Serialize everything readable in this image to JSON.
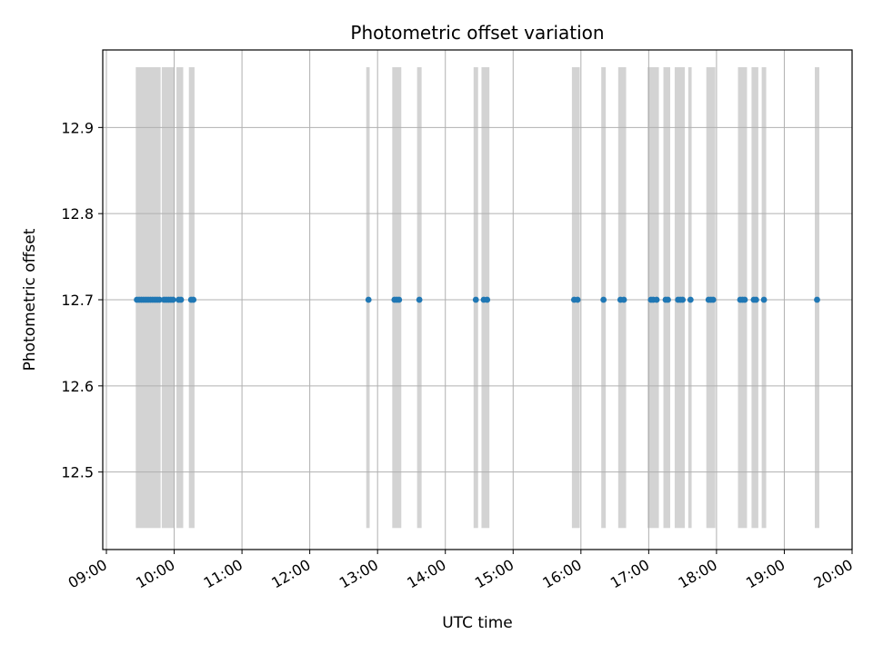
{
  "chart_data": {
    "type": "scatter",
    "title": "Photometric offset variation",
    "xlabel": "UTC time",
    "ylabel": "Photometric offset",
    "xlim": [
      "09:00",
      "20:00"
    ],
    "ylim": [
      12.41,
      12.99
    ],
    "x_ticks": [
      "09:00",
      "10:00",
      "11:00",
      "12:00",
      "13:00",
      "14:00",
      "15:00",
      "16:00",
      "17:00",
      "18:00",
      "19:00",
      "20:00"
    ],
    "y_ticks": [
      12.5,
      12.6,
      12.7,
      12.8,
      12.9
    ],
    "y_tick_labels": [
      "12.5",
      "12.6",
      "12.7",
      "12.8",
      "12.9"
    ],
    "grid": true,
    "point_color": "#1f77b4",
    "span_color": "#d3d3d3",
    "band_range": [
      12.435,
      12.97
    ],
    "exposure_spans": [
      [
        "09:26",
        "09:48"
      ],
      [
        "09:49",
        "10:00"
      ],
      [
        "10:02",
        "10:08"
      ],
      [
        "10:13",
        "10:18"
      ],
      [
        "12:50",
        "12:53"
      ],
      [
        "13:13",
        "13:21"
      ],
      [
        "13:35",
        "13:39"
      ],
      [
        "14:25",
        "14:29"
      ],
      [
        "14:32",
        "14:39"
      ],
      [
        "15:52",
        "15:59"
      ],
      [
        "16:18",
        "16:22"
      ],
      [
        "16:33",
        "16:40"
      ],
      [
        "16:59",
        "17:09"
      ],
      [
        "17:13",
        "17:19"
      ],
      [
        "17:23",
        "17:32"
      ],
      [
        "17:35",
        "17:38"
      ],
      [
        "17:51",
        "17:59"
      ],
      [
        "18:19",
        "18:27"
      ],
      [
        "18:31",
        "18:37"
      ],
      [
        "18:40",
        "18:44"
      ],
      [
        "19:27",
        "19:31"
      ]
    ],
    "points": [
      {
        "t": "09:27",
        "y": 12.7
      },
      {
        "t": "09:29",
        "y": 12.7
      },
      {
        "t": "09:31",
        "y": 12.7
      },
      {
        "t": "09:33",
        "y": 12.7
      },
      {
        "t": "09:35",
        "y": 12.7
      },
      {
        "t": "09:37",
        "y": 12.7
      },
      {
        "t": "09:39",
        "y": 12.7
      },
      {
        "t": "09:41",
        "y": 12.7
      },
      {
        "t": "09:43",
        "y": 12.7
      },
      {
        "t": "09:45",
        "y": 12.7
      },
      {
        "t": "09:47",
        "y": 12.7
      },
      {
        "t": "09:51",
        "y": 12.7
      },
      {
        "t": "09:53",
        "y": 12.7
      },
      {
        "t": "09:55",
        "y": 12.7
      },
      {
        "t": "09:57",
        "y": 12.7
      },
      {
        "t": "09:59",
        "y": 12.7
      },
      {
        "t": "10:04",
        "y": 12.7
      },
      {
        "t": "10:06",
        "y": 12.7
      },
      {
        "t": "10:15",
        "y": 12.7
      },
      {
        "t": "10:17",
        "y": 12.7
      },
      {
        "t": "12:52",
        "y": 12.7
      },
      {
        "t": "13:15",
        "y": 12.7
      },
      {
        "t": "13:17",
        "y": 12.7
      },
      {
        "t": "13:19",
        "y": 12.7
      },
      {
        "t": "13:37",
        "y": 12.7
      },
      {
        "t": "14:27",
        "y": 12.7
      },
      {
        "t": "14:34",
        "y": 12.7
      },
      {
        "t": "14:37",
        "y": 12.7
      },
      {
        "t": "15:54",
        "y": 12.7
      },
      {
        "t": "15:57",
        "y": 12.7
      },
      {
        "t": "16:20",
        "y": 12.7
      },
      {
        "t": "16:35",
        "y": 12.7
      },
      {
        "t": "16:38",
        "y": 12.7
      },
      {
        "t": "17:02",
        "y": 12.7
      },
      {
        "t": "17:04",
        "y": 12.7
      },
      {
        "t": "17:07",
        "y": 12.7
      },
      {
        "t": "17:15",
        "y": 12.7
      },
      {
        "t": "17:17",
        "y": 12.7
      },
      {
        "t": "17:26",
        "y": 12.7
      },
      {
        "t": "17:28",
        "y": 12.7
      },
      {
        "t": "17:30",
        "y": 12.7
      },
      {
        "t": "17:37",
        "y": 12.7
      },
      {
        "t": "17:53",
        "y": 12.7
      },
      {
        "t": "17:55",
        "y": 12.7
      },
      {
        "t": "17:57",
        "y": 12.7
      },
      {
        "t": "18:21",
        "y": 12.7
      },
      {
        "t": "18:23",
        "y": 12.7
      },
      {
        "t": "18:25",
        "y": 12.7
      },
      {
        "t": "18:33",
        "y": 12.7
      },
      {
        "t": "18:35",
        "y": 12.7
      },
      {
        "t": "18:42",
        "y": 12.7
      },
      {
        "t": "19:29",
        "y": 12.7
      }
    ]
  }
}
